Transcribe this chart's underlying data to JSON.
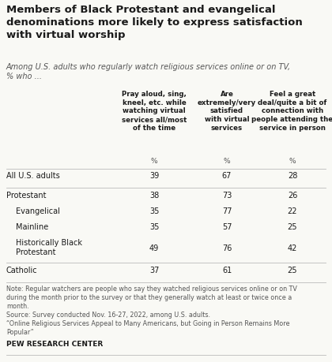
{
  "title": "Members of Black Protestant and evangelical\ndenominations more likely to express satisfaction\nwith virtual worship",
  "subtitle": "Among U.S. adults who regularly watch religious services online or on TV,\n% who ...",
  "col_headers": [
    "Pray aloud, sing,\nkneel, etc. while\nwatching virtual\nservices all/most\nof the time",
    "Are\nextremely/very\nsatisfied\nwith virtual\nservices",
    "Feel a great\ndeal/quite a bit of\nconnection with\npeople attending the\nservice in person"
  ],
  "rows": [
    {
      "label": "All U.S. adults",
      "indent": false,
      "values": [
        39,
        67,
        28
      ]
    },
    {
      "label": "Protestant",
      "indent": false,
      "values": [
        38,
        73,
        26
      ]
    },
    {
      "label": "Evangelical",
      "indent": true,
      "values": [
        35,
        77,
        22
      ]
    },
    {
      "label": "Mainline",
      "indent": true,
      "values": [
        35,
        57,
        25
      ]
    },
    {
      "label": "Historically Black\nProtestant",
      "indent": true,
      "values": [
        49,
        76,
        42
      ]
    },
    {
      "label": "Catholic",
      "indent": false,
      "values": [
        37,
        61,
        25
      ]
    }
  ],
  "note_lines": [
    "Note: Regular watchers are people who say they watched religious services online or on TV",
    "during the month prior to the survey or that they generally watch at least or twice once a",
    "month.",
    "Source: Survey conducted Nov. 16-27, 2022, among U.S. adults.",
    "“Online Religious Services Appeal to Many Americans, but Going in Person Remains More",
    "Popular”"
  ],
  "source_bold": "PEW RESEARCH CENTER",
  "bg_color": "#f9f9f5",
  "text_color": "#1a1a1a",
  "note_color": "#555555",
  "divider_color": "#bbbbbb",
  "divider_after_rows": [
    0,
    4
  ]
}
